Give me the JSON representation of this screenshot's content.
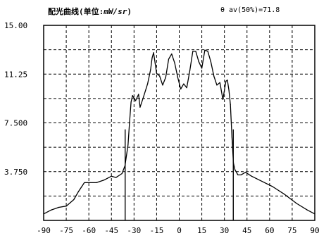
{
  "header": {
    "title_text": "配光曲线(",
    "title_unit_label": "单位",
    "title_unit_sep": ":",
    "title_unit": "mW/sr",
    "title_close": ")",
    "beam_readout": "θ av(50%)=71.8"
  },
  "chart_data": {
    "type": "line",
    "title": "配光曲线(单位:mW/sr)",
    "annotation": "θ av(50%)=71.8",
    "xlabel": "",
    "ylabel": "",
    "xlim": [
      -90,
      90
    ],
    "ylim": [
      0,
      15
    ],
    "x_ticks": [
      -90,
      -75,
      -60,
      -45,
      -30,
      -15,
      0,
      15,
      30,
      45,
      60,
      75,
      90
    ],
    "y_ticks": [
      3.75,
      7.5,
      11.25,
      15
    ],
    "y_tick_labels": [
      "3.750",
      "7.500",
      "11.25",
      "15.00"
    ],
    "grid": true,
    "grid_style": "dashed",
    "line_color": "#000000",
    "half_max_markers": [
      -35.9,
      35.9
    ],
    "series": [
      {
        "values": [
          [
            -90,
            0.5
          ],
          [
            -85,
            0.8
          ],
          [
            -80,
            1.0
          ],
          [
            -75,
            1.1
          ],
          [
            -70,
            1.6
          ],
          [
            -67,
            2.2
          ],
          [
            -63,
            2.9
          ],
          [
            -60,
            2.9
          ],
          [
            -55,
            2.9
          ],
          [
            -50,
            3.1
          ],
          [
            -45,
            3.4
          ],
          [
            -42,
            3.3
          ],
          [
            -38,
            3.6
          ],
          [
            -36,
            4.2
          ],
          [
            -34,
            5.8
          ],
          [
            -33,
            7.5
          ],
          [
            -32,
            9.1
          ],
          [
            -31,
            9.6
          ],
          [
            -29,
            9.2
          ],
          [
            -27,
            9.7
          ],
          [
            -26,
            8.7
          ],
          [
            -24,
            9.4
          ],
          [
            -21,
            10.5
          ],
          [
            -19,
            11.6
          ],
          [
            -18,
            12.5
          ],
          [
            -17,
            12.9
          ],
          [
            -16,
            12.1
          ],
          [
            -15,
            11.3
          ],
          [
            -13,
            11.1
          ],
          [
            -11,
            10.4
          ],
          [
            -9,
            11.0
          ],
          [
            -7,
            12.4
          ],
          [
            -5,
            12.8
          ],
          [
            -3,
            12.1
          ],
          [
            -1,
            11.0
          ],
          [
            1,
            10.1
          ],
          [
            3,
            10.5
          ],
          [
            5,
            10.2
          ],
          [
            7,
            11.5
          ],
          [
            9,
            13.0
          ],
          [
            11,
            13.0
          ],
          [
            13,
            12.2
          ],
          [
            15,
            11.7
          ],
          [
            17,
            13.1
          ],
          [
            19,
            13.0
          ],
          [
            21,
            12.2
          ],
          [
            23,
            11.1
          ],
          [
            25,
            10.4
          ],
          [
            27,
            10.6
          ],
          [
            29,
            9.3
          ],
          [
            31,
            10.7
          ],
          [
            32,
            10.8
          ],
          [
            33,
            10.0
          ],
          [
            34,
            8.9
          ],
          [
            35,
            6.4
          ],
          [
            36,
            4.4
          ],
          [
            37,
            3.9
          ],
          [
            39,
            3.5
          ],
          [
            41,
            3.5
          ],
          [
            44,
            3.7
          ],
          [
            48,
            3.4
          ],
          [
            55,
            3.0
          ],
          [
            62,
            2.6
          ],
          [
            70,
            2.0
          ],
          [
            78,
            1.3
          ],
          [
            85,
            0.8
          ],
          [
            90,
            0.5
          ]
        ]
      }
    ]
  }
}
